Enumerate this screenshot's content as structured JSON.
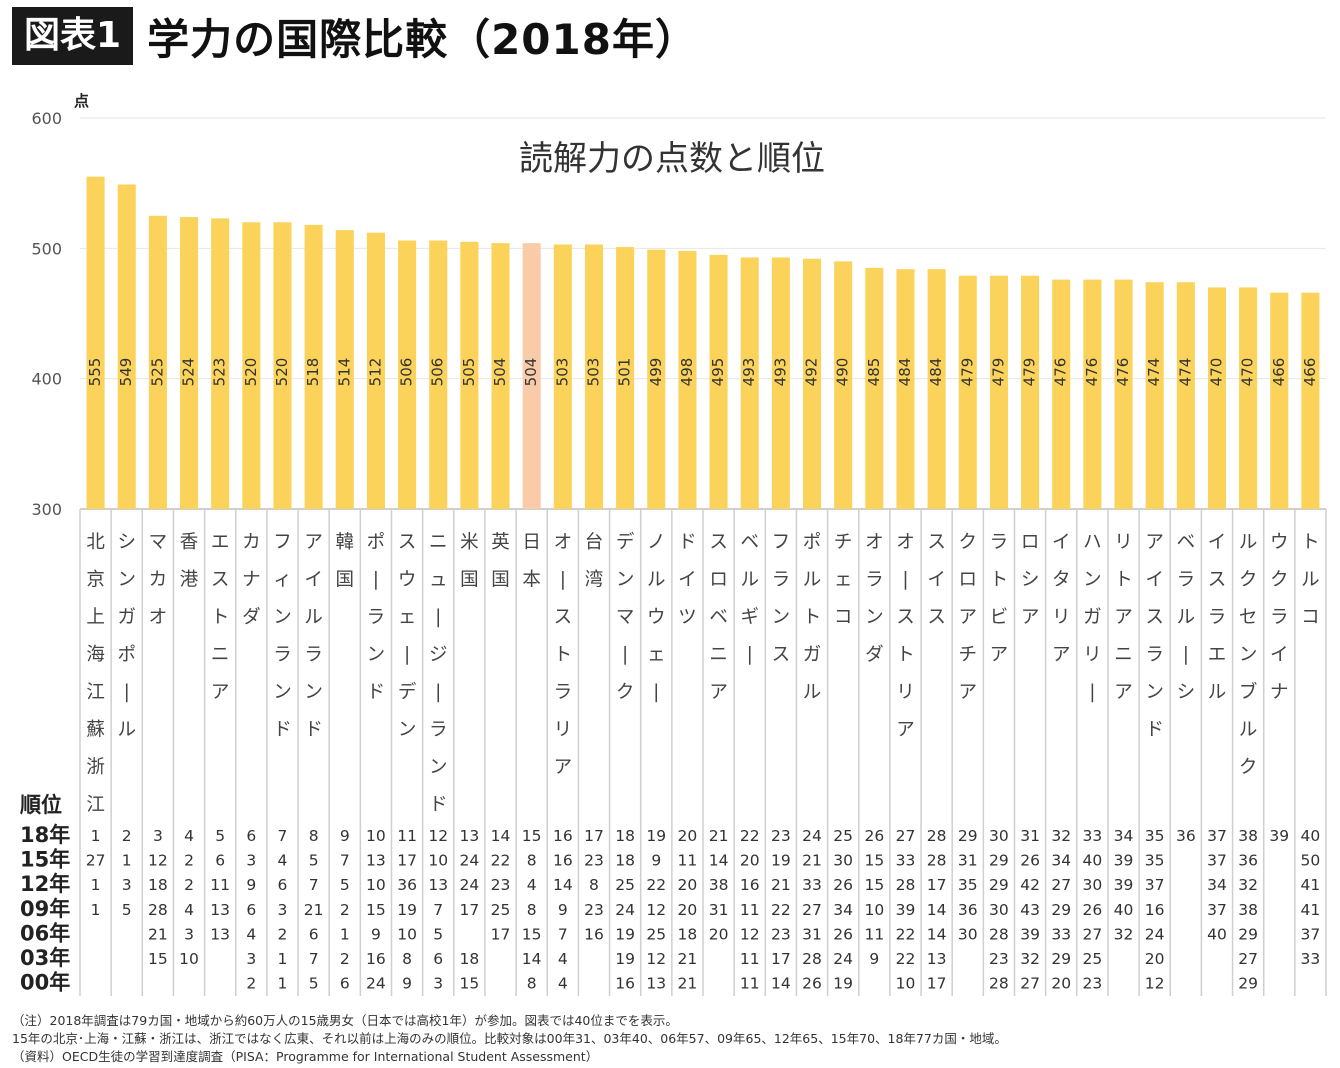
{
  "header": {
    "figure_label": "図表1",
    "title": "学力の国際比較（2018年）"
  },
  "chart_data": {
    "type": "bar",
    "title": "読解力の点数と順位",
    "ylabel": "点",
    "ylim": [
      300,
      600
    ],
    "yticks": [
      300,
      400,
      500,
      600
    ],
    "grid": true,
    "bar_color": "#fbd35a",
    "highlight_color": "#f9cba8",
    "highlight_index": 14,
    "categories": [
      "北京上海江蘇浙江",
      "シンガポール",
      "マカオ",
      "香港",
      "エストニア",
      "カナダ",
      "フィンランド",
      "アイルランド",
      "韓国",
      "ポーランド",
      "スウェーデン",
      "ニュージーランド",
      "米国",
      "英国",
      "日本",
      "オーストラリア",
      "台湾",
      "デンマーク",
      "ノルウェー",
      "ドイツ",
      "スロベニア",
      "ベルギー",
      "フランス",
      "ポルトガル",
      "チェコ",
      "オランダ",
      "オーストリア",
      "スイス",
      "クロアチア",
      "ラトビア",
      "ロシア",
      "イタリア",
      "ハンガリー",
      "リトアニア",
      "アイスランド",
      "ベラルーシ",
      "イスラエル",
      "ルクセンブルク",
      "ウクライナ",
      "トルコ"
    ],
    "values": [
      555,
      549,
      525,
      524,
      523,
      520,
      520,
      518,
      514,
      512,
      506,
      506,
      505,
      504,
      504,
      503,
      503,
      501,
      499,
      498,
      495,
      493,
      493,
      492,
      490,
      485,
      484,
      484,
      479,
      479,
      479,
      476,
      476,
      476,
      474,
      474,
      470,
      470,
      466,
      466
    ],
    "rank_header": "順位",
    "rank_years": [
      "18年",
      "15年",
      "12年",
      "09年",
      "06年",
      "03年",
      "00年"
    ],
    "ranks": [
      [
        "1",
        "27",
        "1",
        "1",
        "",
        "",
        ""
      ],
      [
        "2",
        "1",
        "3",
        "5",
        "",
        "",
        ""
      ],
      [
        "3",
        "12",
        "18",
        "28",
        "21",
        "15",
        ""
      ],
      [
        "4",
        "2",
        "2",
        "4",
        "3",
        "10",
        ""
      ],
      [
        "5",
        "6",
        "11",
        "13",
        "13",
        "",
        ""
      ],
      [
        "6",
        "3",
        "9",
        "6",
        "4",
        "3",
        "2"
      ],
      [
        "7",
        "4",
        "6",
        "3",
        "2",
        "1",
        "1"
      ],
      [
        "8",
        "5",
        "7",
        "21",
        "6",
        "7",
        "5"
      ],
      [
        "9",
        "7",
        "5",
        "2",
        "1",
        "2",
        "6"
      ],
      [
        "10",
        "13",
        "10",
        "15",
        "9",
        "16",
        "24"
      ],
      [
        "11",
        "17",
        "36",
        "19",
        "10",
        "8",
        "9"
      ],
      [
        "12",
        "10",
        "13",
        "7",
        "5",
        "6",
        "3"
      ],
      [
        "13",
        "24",
        "24",
        "17",
        "",
        "18",
        "15"
      ],
      [
        "14",
        "22",
        "23",
        "25",
        "17",
        "",
        ""
      ],
      [
        "15",
        "8",
        "4",
        "8",
        "15",
        "14",
        "8"
      ],
      [
        "16",
        "16",
        "14",
        "9",
        "7",
        "4",
        "4"
      ],
      [
        "17",
        "23",
        "8",
        "23",
        "16",
        "",
        ""
      ],
      [
        "18",
        "18",
        "25",
        "24",
        "19",
        "19",
        "16"
      ],
      [
        "19",
        "9",
        "22",
        "12",
        "25",
        "12",
        "13"
      ],
      [
        "20",
        "11",
        "20",
        "20",
        "18",
        "21",
        "21"
      ],
      [
        "21",
        "14",
        "38",
        "31",
        "20",
        "",
        ""
      ],
      [
        "22",
        "20",
        "16",
        "11",
        "12",
        "11",
        "11"
      ],
      [
        "23",
        "19",
        "21",
        "22",
        "23",
        "17",
        "14"
      ],
      [
        "24",
        "21",
        "33",
        "27",
        "31",
        "28",
        "26"
      ],
      [
        "25",
        "30",
        "26",
        "34",
        "26",
        "24",
        "19"
      ],
      [
        "26",
        "15",
        "15",
        "10",
        "11",
        "9",
        ""
      ],
      [
        "27",
        "33",
        "28",
        "39",
        "22",
        "22",
        "10"
      ],
      [
        "28",
        "28",
        "17",
        "14",
        "14",
        "13",
        "17"
      ],
      [
        "29",
        "31",
        "35",
        "36",
        "30",
        "",
        ""
      ],
      [
        "30",
        "29",
        "29",
        "30",
        "28",
        "23",
        "28"
      ],
      [
        "31",
        "26",
        "42",
        "43",
        "39",
        "32",
        "27"
      ],
      [
        "32",
        "34",
        "27",
        "29",
        "33",
        "29",
        "20"
      ],
      [
        "33",
        "40",
        "30",
        "26",
        "27",
        "25",
        "23"
      ],
      [
        "34",
        "39",
        "39",
        "40",
        "32",
        "",
        ""
      ],
      [
        "35",
        "35",
        "37",
        "16",
        "24",
        "20",
        "12"
      ],
      [
        "36",
        "",
        "",
        "",
        "",
        "",
        ""
      ],
      [
        "37",
        "37",
        "34",
        "37",
        "40",
        "",
        ""
      ],
      [
        "38",
        "36",
        "32",
        "38",
        "29",
        "27",
        "29"
      ],
      [
        "39",
        "",
        "",
        "",
        "",
        "",
        ""
      ],
      [
        "40",
        "50",
        "41",
        "41",
        "37",
        "33",
        ""
      ]
    ]
  },
  "notes": [
    "（注）2018年調査は79カ国・地域から約60万人の15歳男女（日本では高校1年）が参加。図表では40位までを表示。",
    "15年の北京･上海・江蘇・浙江は、浙江ではなく広東、それ以前は上海のみの順位。比較対象は00年31、03年40、06年57、09年65、12年65、15年70、18年77カ国・地域。",
    "（資料）OECD生徒の学習到達度調査（PISA：Programme for International Student Assessment）"
  ]
}
